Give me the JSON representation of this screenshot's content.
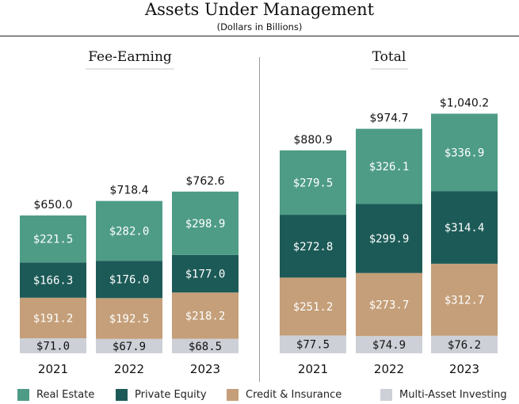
{
  "header": {
    "title": "Assets Under Management",
    "subtitle": "(Dollars in Billions)"
  },
  "colors": {
    "real_estate": "#4e9c86",
    "private_equity": "#1c5a57",
    "credit_insurance": "#c49f79",
    "multi_asset": "#cdd0d7"
  },
  "chart_data": [
    {
      "type": "bar",
      "stacked": true,
      "title": "Fee-Earning",
      "categories": [
        "2021",
        "2022",
        "2023"
      ],
      "totals": [
        "$650.0",
        "$718.4",
        "$762.6"
      ],
      "total_values": [
        650.0,
        718.4,
        762.6
      ],
      "series": [
        {
          "name": "Multi-Asset Investing",
          "values": [
            71.0,
            67.9,
            68.5
          ],
          "labels": [
            "$71.0",
            "$67.9",
            "$68.5"
          ]
        },
        {
          "name": "Credit & Insurance",
          "values": [
            191.2,
            192.5,
            218.2
          ],
          "labels": [
            "$191.2",
            "$192.5",
            "$218.2"
          ]
        },
        {
          "name": "Private Equity",
          "values": [
            166.3,
            176.0,
            177.0
          ],
          "labels": [
            "$166.3",
            "$176.0",
            "$177.0"
          ]
        },
        {
          "name": "Real Estate",
          "values": [
            221.5,
            282.0,
            298.9
          ],
          "labels": [
            "$221.5",
            "$282.0",
            "$298.9"
          ]
        }
      ]
    },
    {
      "type": "bar",
      "stacked": true,
      "title": "Total",
      "categories": [
        "2021",
        "2022",
        "2023"
      ],
      "totals": [
        "$880.9",
        "$974.7",
        "$1,040.2"
      ],
      "total_values": [
        880.9,
        974.7,
        1040.2
      ],
      "series": [
        {
          "name": "Multi-Asset Investing",
          "values": [
            77.5,
            74.9,
            76.2
          ],
          "labels": [
            "$77.5",
            "$74.9",
            "$76.2"
          ]
        },
        {
          "name": "Credit & Insurance",
          "values": [
            251.2,
            273.7,
            312.7
          ],
          "labels": [
            "$251.2",
            "$273.7",
            "$312.7"
          ]
        },
        {
          "name": "Private Equity",
          "values": [
            272.8,
            299.9,
            314.4
          ],
          "labels": [
            "$272.8",
            "$299.9",
            "$314.4"
          ]
        },
        {
          "name": "Real Estate",
          "values": [
            279.5,
            326.1,
            336.9
          ],
          "labels": [
            "$279.5",
            "$326.1",
            "$336.9"
          ]
        }
      ]
    }
  ],
  "legend": {
    "placement": "bottom",
    "items": [
      {
        "label": "Real Estate",
        "color": "#4e9c86"
      },
      {
        "label": "Private Equity",
        "color": "#1c5a57"
      },
      {
        "label": "Credit & Insurance",
        "color": "#c49f79"
      },
      {
        "label": "Multi-Asset Investing",
        "color": "#cdd0d7"
      }
    ]
  }
}
